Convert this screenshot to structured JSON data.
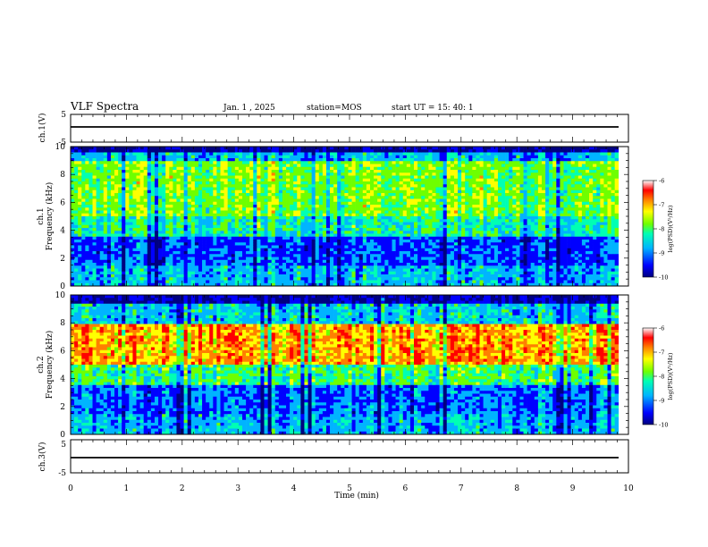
{
  "header": {
    "title": "VLF Spectra",
    "date": "Jan. 1 , 2025",
    "station": "station=MOS",
    "start_ut": "start UT =  15: 40: 1"
  },
  "chart_data": [
    {
      "type": "line",
      "name": "ch1-voltage",
      "ylabel": "ch.1(V)",
      "ylim": [
        -5,
        5
      ],
      "yticks": [
        "5",
        "-5"
      ],
      "baseline_value": -1
    },
    {
      "type": "heatmap",
      "name": "ch1-spectrogram",
      "ylabel_top": "ch.1",
      "ylabel": "Frequency (kHz)",
      "ylim": [
        0,
        10
      ],
      "yticks": [
        "0",
        "2",
        "4",
        "6",
        "8",
        "10"
      ],
      "colorbar": {
        "label": "log(PSD)(V²/Hz)",
        "range": [
          -10,
          -6
        ],
        "ticks": [
          "-6",
          "-7",
          "-8",
          "-9",
          "-10"
        ]
      },
      "dominant_band_khz": [
        5,
        9
      ]
    },
    {
      "type": "heatmap",
      "name": "ch2-spectrogram",
      "ylabel_top": "ch.2",
      "ylabel": "Frequency (kHz)",
      "ylim": [
        0,
        10
      ],
      "yticks": [
        "0",
        "2",
        "4",
        "6",
        "8",
        "10"
      ],
      "colorbar": {
        "label": "log(PSD)(V²/Hz)",
        "range": [
          -10,
          -6
        ],
        "ticks": [
          "-6",
          "-7",
          "-8",
          "-9",
          "-10"
        ]
      },
      "dominant_band_khz": [
        5,
        8
      ]
    },
    {
      "type": "line",
      "name": "ch3-voltage",
      "ylabel": "ch.3(V)",
      "ylim": [
        -5,
        5
      ],
      "yticks": [
        "5",
        "-5"
      ],
      "baseline_value": -1
    }
  ],
  "xaxis": {
    "label": "Time (min)",
    "xlim": [
      0,
      10
    ],
    "ticks": [
      "0",
      "1",
      "2",
      "3",
      "4",
      "5",
      "6",
      "7",
      "8",
      "9",
      "10"
    ],
    "data_end_min": 9.82
  },
  "colors": {
    "colormap": [
      "#000080",
      "#0000ff",
      "#00b4ff",
      "#00ffb4",
      "#6eff00",
      "#ffff00",
      "#ff8000",
      "#ff0000",
      "#ffffff"
    ],
    "background": "#ffffff"
  }
}
